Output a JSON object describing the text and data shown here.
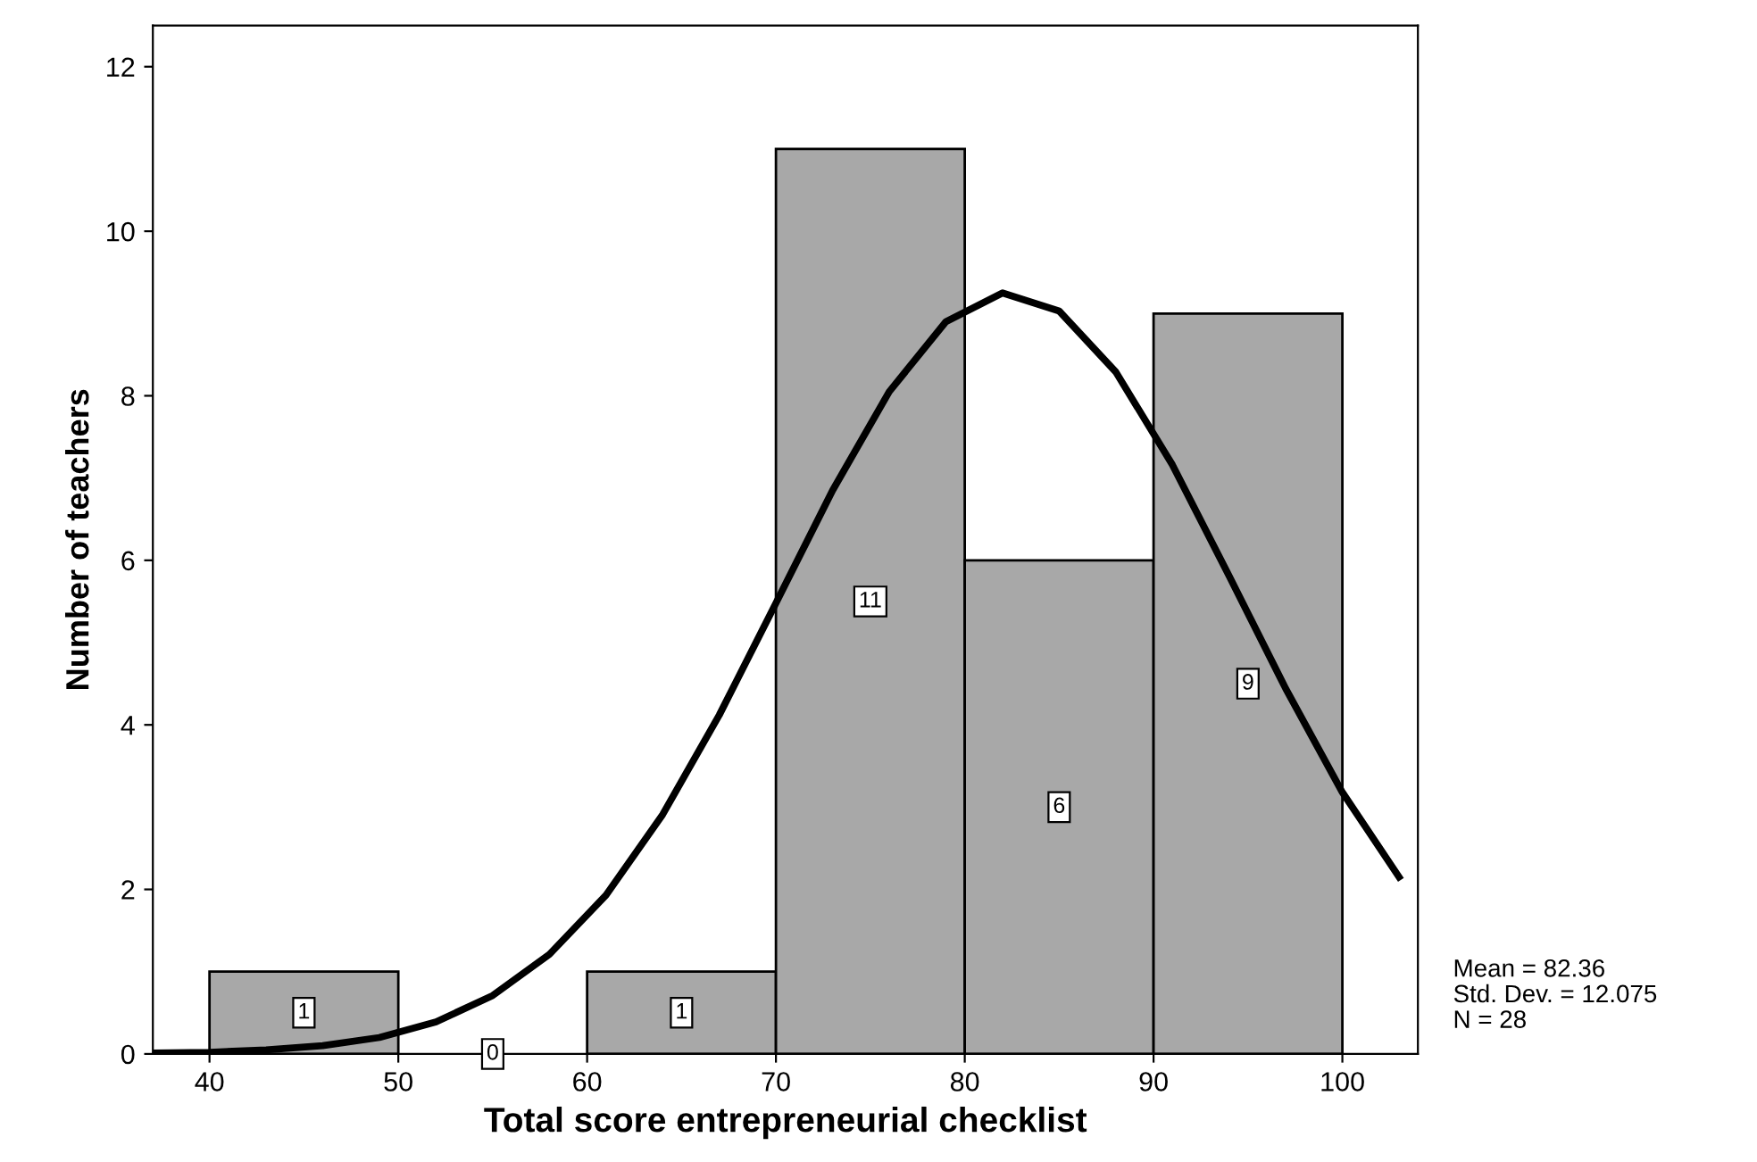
{
  "chart_data": {
    "type": "histogram",
    "xlabel": "Total score entrepreneurial checklist",
    "ylabel": "Number of teachers",
    "series": [
      {
        "color": "#a8a8a8",
        "bins": [
          40,
          50,
          60,
          70,
          80,
          90,
          100
        ],
        "values": [
          1,
          0,
          1,
          11,
          6,
          9
        ],
        "value_labels": [
          "1",
          "0",
          "1",
          "11",
          "6",
          "9"
        ]
      },
      {
        "type": "line",
        "color": "#000000",
        "x": [
          37,
          40,
          43,
          46,
          49,
          52,
          55,
          58,
          61,
          64,
          67,
          70,
          73,
          76,
          79,
          82,
          85,
          88,
          91,
          94,
          97,
          100,
          103
        ],
        "values": [
          0.01,
          0.02,
          0.05,
          0.1,
          0.2,
          0.39,
          0.71,
          1.21,
          1.93,
          2.91,
          4.12,
          5.48,
          6.85,
          8.05,
          8.9,
          9.25,
          9.03,
          8.29,
          7.16,
          5.81,
          4.44,
          3.18,
          2.15
        ]
      }
    ],
    "xlim": [
      37,
      104
    ],
    "ylim": [
      0,
      12.5
    ],
    "xticks": [
      40,
      50,
      60,
      70,
      80,
      90,
      100
    ],
    "yticks": [
      0,
      2,
      4,
      6,
      8,
      10,
      12
    ],
    "grid": false,
    "marker": "none",
    "line_style": "solid",
    "annotations": [
      "Mean = 82.36",
      "Std. Dev. = 12.075",
      "N = 28"
    ]
  }
}
